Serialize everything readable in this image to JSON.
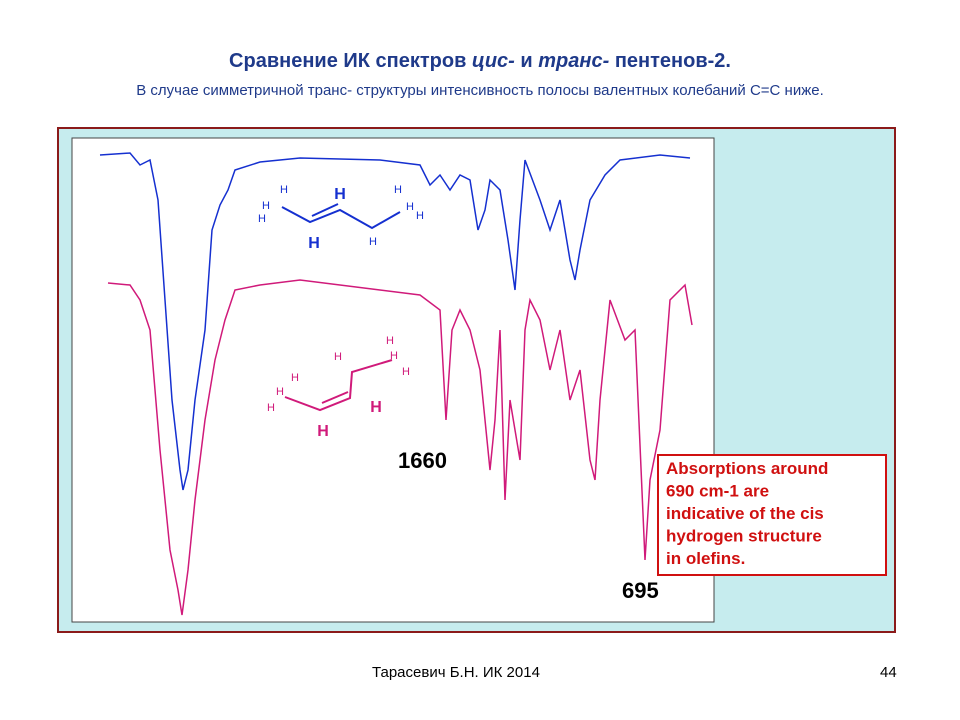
{
  "title": {
    "parts": [
      "Сравнение ИК спектров ",
      "цис-",
      " и ",
      "транс-",
      " пентенов-2."
    ]
  },
  "subtitle": "В случае симметричной транс- структуры интенсивность полосы валентных колебаний С=С ниже.",
  "figure": {
    "trans_molecule": {
      "small_labels": [
        "H",
        "H",
        "H",
        "H",
        "H",
        "H",
        "H"
      ],
      "large_labels": [
        "H",
        "H"
      ]
    },
    "cis_molecule": {
      "small_labels": [
        "H",
        "H",
        "H",
        "H",
        "H",
        "H",
        "H"
      ],
      "large_labels": [
        "H",
        "H"
      ]
    },
    "peak_labels": [
      "1660",
      "695"
    ],
    "note_lines": [
      "Absorptions around",
      "690 cm-1 are",
      "indicative of the cis",
      "hydrogen structure",
      "in olefins."
    ]
  },
  "footer": {
    "author": "Тарасевич Б.Н.  ИК 2014",
    "page": "44"
  }
}
